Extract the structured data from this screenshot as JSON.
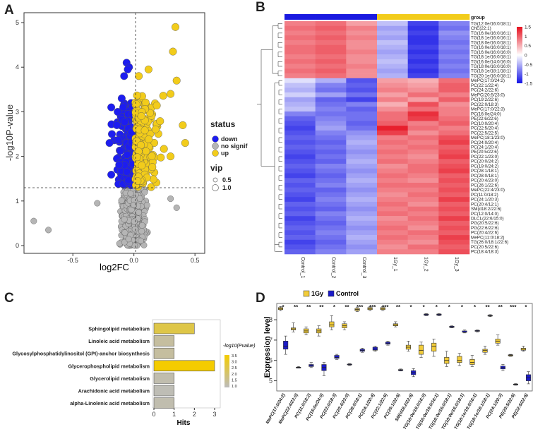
{
  "panels": [
    "A",
    "B",
    "C",
    "D"
  ],
  "colors": {
    "down": "#1d1df0",
    "nosig": "#b5b5b5",
    "up": "#f2cc1b",
    "hm_low": "#1414e6",
    "hm_mid": "#ffffff",
    "hm_high": "#e60f1e",
    "box_1gy": "#f2cc3a",
    "box_control": "#1b1bc8"
  },
  "volcano": {
    "xlabel": "log2FC",
    "ylabel": "-log10P-value",
    "xticks": [
      "-0.5",
      "0.0",
      "0.5"
    ],
    "yticks": [
      "0",
      "1",
      "2",
      "3",
      "4",
      "5"
    ],
    "legend": {
      "status_title": "status",
      "status_items": [
        "down",
        "no signif",
        "up"
      ],
      "vip_title": "vip",
      "vip_items": [
        "0.5",
        "1.0"
      ]
    }
  },
  "heatmap": {
    "group_label": "group",
    "scale_ticks": [
      "1.5",
      "1",
      "0.5",
      "0",
      "-0.5",
      "-1",
      "-1.5"
    ],
    "columns": [
      "Control_1",
      "Control_2",
      "Control_3",
      "1Gy_1",
      "1Gy_2",
      "1Gy_3"
    ],
    "rows": [
      "TG(12:0e/16:0/18:1)",
      "ChE(22:1)",
      "TG(16:0e/16:0/16:1)",
      "TG(18:1e/16:0/16:1)",
      "TG(18:0e/16:0/18:1)",
      "TG(16:0e/16:0/18:1)",
      "TG(16:0e/16:0/16:0)",
      "TG(18:1e/16:0/18:1)",
      "TG(16:0e/14:0/16:0)",
      "TG(18:0e/16:0/16:0)",
      "TG(18:1e/18:1/18:1)",
      "TG(20:1e/16:0/18:1)",
      "MePC(17:0/24:2)",
      "PC(22:1/22:4)",
      "PC(24:2/22:6)",
      "MePC(20:5/23:0)",
      "PC(19:2/22:6)",
      "PC(22:0/18:3)",
      "MePC(17:0/22:3)",
      "PC(16:0e/24:0)",
      "PE(22:6/22:6)",
      "PC(10:0/20:4)",
      "PC(22:5/20:4)",
      "PC(22:5/22:5)",
      "MePC(18:1/23:0)",
      "PC(24:0/20:4)",
      "PC(24:1/20:4)",
      "PE(20:5/22:6)",
      "PC(22:1/23:0)",
      "PC(20:0/24:2)",
      "PC(19:0/24:2)",
      "PC(28:1/18:1)",
      "PC(28:0/18:1)",
      "PC(20:4/23:0)",
      "PC(26:1/22:6)",
      "MePC(22:4/23:0)",
      "PC(11:0/18:2)",
      "PC(24:1/20:3)",
      "PC(20:4/12:1)",
      "SM(d18:2/22:6)",
      "PC(12:0/14:0)",
      "DLCL(22:6/15:0)",
      "PG(20:5/22:6)",
      "PG(22:6/22:6)",
      "PC(20:4/22:6)",
      "MePC(11:0/18:2)",
      "TG(26:0/18:1/22:6)",
      "PC(20:5/22:6)",
      "PC(18:4/18:3)"
    ],
    "values": [
      [
        0.8,
        0.9,
        0.6,
        -0.4,
        -1.2,
        -0.8
      ],
      [
        0.9,
        1.0,
        0.8,
        -0.6,
        -1.3,
        -0.9
      ],
      [
        0.8,
        0.9,
        0.7,
        -0.5,
        -1.2,
        -0.7
      ],
      [
        0.9,
        1.0,
        0.8,
        -0.6,
        -1.3,
        -0.8
      ],
      [
        0.8,
        0.9,
        0.7,
        -0.4,
        -1.3,
        -0.9
      ],
      [
        0.9,
        1.0,
        0.7,
        -0.5,
        -1.2,
        -0.8
      ],
      [
        0.9,
        1.0,
        0.8,
        -0.6,
        -1.3,
        -0.9
      ],
      [
        0.8,
        0.9,
        0.7,
        -0.5,
        -1.2,
        -0.8
      ],
      [
        0.9,
        1.0,
        0.7,
        -0.4,
        -1.3,
        -0.9
      ],
      [
        0.8,
        0.9,
        0.8,
        -0.5,
        -1.2,
        -0.8
      ],
      [
        0.9,
        1.0,
        0.7,
        -0.6,
        -1.3,
        -0.9
      ],
      [
        0.8,
        0.9,
        0.7,
        -0.5,
        -1.2,
        -0.8
      ],
      [
        -0.2,
        -0.5,
        -1.1,
        0.6,
        0.5,
        0.9
      ],
      [
        -0.4,
        -0.8,
        -1.0,
        0.7,
        0.6,
        1.0
      ],
      [
        -0.5,
        -0.9,
        -1.1,
        0.8,
        0.7,
        1.0
      ],
      [
        -0.3,
        -0.6,
        -0.9,
        0.6,
        0.9,
        0.8
      ],
      [
        -0.6,
        -1.0,
        -1.2,
        0.8,
        0.6,
        1.0
      ],
      [
        -0.5,
        -0.9,
        -0.8,
        0.5,
        1.1,
        0.7
      ],
      [
        -0.4,
        -0.8,
        -1.0,
        0.7,
        0.9,
        0.8
      ],
      [
        -0.8,
        -0.9,
        -0.9,
        0.9,
        1.3,
        0.8
      ],
      [
        -1.0,
        -0.8,
        -0.9,
        0.9,
        1.2,
        0.9
      ],
      [
        -1.1,
        -0.7,
        -1.0,
        1.0,
        0.8,
        1.0
      ],
      [
        -1.2,
        -0.6,
        -0.9,
        1.4,
        0.9,
        0.8
      ],
      [
        -1.1,
        -0.8,
        -0.7,
        1.2,
        0.7,
        0.9
      ],
      [
        -1.0,
        -0.9,
        -0.6,
        0.8,
        0.9,
        1.1
      ],
      [
        -1.1,
        -1.0,
        -0.5,
        0.9,
        0.8,
        1.2
      ],
      [
        -1.0,
        -0.9,
        -0.6,
        0.8,
        0.9,
        1.0
      ],
      [
        -1.1,
        -1.0,
        -0.7,
        0.9,
        0.8,
        1.1
      ],
      [
        -1.2,
        -0.9,
        -0.6,
        0.8,
        0.7,
        1.2
      ],
      [
        -1.1,
        -1.0,
        -0.5,
        0.9,
        0.8,
        1.0
      ],
      [
        -1.0,
        -0.8,
        -0.6,
        0.7,
        0.9,
        1.1
      ],
      [
        -1.1,
        -0.9,
        -0.7,
        0.8,
        0.9,
        1.2
      ],
      [
        -1.2,
        -1.0,
        -0.6,
        0.9,
        0.8,
        1.0
      ],
      [
        -1.0,
        -0.9,
        -0.5,
        0.8,
        0.7,
        1.1
      ],
      [
        -1.1,
        -0.8,
        -0.6,
        0.9,
        0.9,
        1.0
      ],
      [
        -1.0,
        -1.0,
        -0.7,
        0.8,
        0.8,
        1.1
      ],
      [
        -1.1,
        -0.9,
        -0.6,
        0.7,
        0.9,
        1.0
      ],
      [
        -1.2,
        -0.8,
        -0.5,
        0.8,
        0.8,
        1.2
      ],
      [
        -1.0,
        -0.9,
        -0.6,
        0.9,
        0.7,
        1.0
      ],
      [
        -1.1,
        -1.0,
        -0.7,
        0.8,
        0.9,
        1.1
      ],
      [
        -1.0,
        -0.8,
        -0.6,
        0.9,
        0.8,
        1.0
      ],
      [
        -1.2,
        -0.9,
        -0.5,
        0.7,
        0.9,
        1.2
      ],
      [
        -1.1,
        -1.0,
        -0.6,
        0.8,
        0.8,
        1.0
      ],
      [
        -1.0,
        -0.9,
        -0.7,
        0.9,
        0.7,
        1.1
      ],
      [
        -1.1,
        -0.8,
        -0.6,
        0.8,
        0.9,
        1.0
      ],
      [
        -1.0,
        -0.9,
        -0.5,
        0.9,
        0.8,
        1.2
      ],
      [
        -1.2,
        -1.0,
        -0.6,
        0.8,
        0.7,
        1.1
      ],
      [
        -1.1,
        -0.9,
        -0.7,
        0.7,
        0.9,
        1.0
      ],
      [
        -1.0,
        -0.8,
        -0.6,
        0.8,
        0.8,
        1.1
      ]
    ]
  },
  "chart_data": [
    {
      "type": "bar",
      "panel": "C",
      "categories": [
        "Sphingolipid metabolism",
        "Linoleic acid metabolism",
        "Glycosylphosphatidylinositol (GPI)-anchor biosynthesis",
        "Glycerophospholipid metabolism",
        "Glycerolipid metabolism",
        "Arachidonic acid metabolism",
        "alpha-Linolenic acid metabolism"
      ],
      "values": [
        2,
        1,
        1,
        3,
        1,
        1,
        1
      ],
      "color_values": [
        2.6,
        1.4,
        1.4,
        3.6,
        1.2,
        1.1,
        1.2
      ],
      "xlabel": "Hits",
      "xticks": [
        "0",
        "1",
        "2",
        "3"
      ],
      "xlim": [
        0,
        3
      ],
      "legend_title": "-log10(Pvalue)",
      "legend_ticks": [
        "3.5",
        "3.0",
        "2.5",
        "2.0",
        "1.5",
        "1.0"
      ]
    },
    {
      "type": "box",
      "panel": "D",
      "ylabel": "Expression level",
      "yticks": [
        "5",
        "6",
        "7",
        "8"
      ],
      "ylim": [
        4.5,
        8.8
      ],
      "legend": [
        "1Gy",
        "Control"
      ],
      "categories": [
        "MePC(17:0/24:2)",
        "MePC(22:4/23:0)",
        "PC(11:0/18:2)",
        "PC(16:0e/24:0)",
        "PC(22:0/18:3)",
        "PC(20:4/23:0)",
        "PC(28:0/18:1)",
        "PC(24:1/20:4)",
        "PC(22:1/22:6)",
        "PC(26:1/22:6)",
        "SM(d18:2/22:6)",
        "TG(16:0e/16:0/16:0)",
        "TG(16:0e/16:0/16:1)",
        "TG(16:0e/16:0/18:1)",
        "TG(18:0e/16:0/18:1)",
        "TG(18:1e/16:0/16:1)",
        "TG(18:1e/18:1/18:1)",
        "PC(24:1/20:3)",
        "PE(20:5/22:6)",
        "PE(22:6/22:6)"
      ],
      "significance": [
        "*",
        "**",
        "**",
        "**",
        "*",
        "**",
        "***",
        "***",
        "***",
        "**",
        "*",
        "*",
        "*",
        "*",
        "*",
        "*",
        "**",
        "**",
        "***",
        "*"
      ],
      "series": [
        {
          "name": "1Gy",
          "stats": [
            [
              8.45,
              8.5,
              8.55,
              8.6,
              8.65
            ],
            [
              7.4,
              7.5,
              7.55,
              7.6,
              7.85
            ],
            [
              7.25,
              7.35,
              7.45,
              7.55,
              7.65
            ],
            [
              7.2,
              7.35,
              7.45,
              7.55,
              7.7
            ],
            [
              7.5,
              7.65,
              7.75,
              7.9,
              8.2
            ],
            [
              7.5,
              7.6,
              7.7,
              7.8,
              7.9
            ],
            [
              8.4,
              8.45,
              8.5,
              8.55,
              8.6
            ],
            [
              8.45,
              8.5,
              8.55,
              8.6,
              8.65
            ],
            [
              8.45,
              8.5,
              8.55,
              8.6,
              8.65
            ],
            [
              7.65,
              7.7,
              7.75,
              7.8,
              7.9
            ],
            [
              6.45,
              6.55,
              6.65,
              6.75,
              6.95
            ],
            [
              6.15,
              6.3,
              6.5,
              6.75,
              6.9
            ],
            [
              6.2,
              6.45,
              6.7,
              6.85,
              7.05
            ],
            [
              5.7,
              5.85,
              6.0,
              6.15,
              6.45
            ],
            [
              5.75,
              5.9,
              6.0,
              6.2,
              6.35
            ],
            [
              5.7,
              5.8,
              5.9,
              6.05,
              6.25
            ],
            [
              6.3,
              6.4,
              6.5,
              6.55,
              6.7
            ],
            [
              6.75,
              6.85,
              6.95,
              7.05,
              7.25
            ],
            [
              6.2,
              6.22,
              6.25,
              6.28,
              6.3
            ],
            [
              6.45,
              6.5,
              6.55,
              6.6,
              6.7
            ]
          ]
        },
        {
          "name": "Control",
          "stats": [
            [
              6.3,
              6.55,
              6.7,
              6.95,
              7.2
            ],
            [
              5.62,
              5.64,
              5.65,
              5.67,
              5.7
            ],
            [
              5.65,
              5.7,
              5.75,
              5.8,
              5.9
            ],
            [
              5.25,
              5.5,
              5.65,
              5.8,
              5.9
            ],
            [
              6.05,
              6.1,
              6.15,
              6.25,
              6.3
            ],
            [
              5.75,
              5.78,
              5.8,
              5.82,
              5.85
            ],
            [
              6.4,
              6.45,
              6.5,
              6.55,
              6.6
            ],
            [
              6.45,
              6.5,
              6.55,
              6.65,
              6.7
            ],
            [
              6.75,
              6.8,
              6.85,
              6.9,
              6.95
            ],
            [
              5.48,
              5.5,
              5.52,
              5.55,
              5.58
            ],
            [
              5.2,
              5.3,
              5.4,
              5.5,
              5.6
            ],
            [
              8.2,
              8.22,
              8.25,
              8.28,
              8.3
            ],
            [
              8.2,
              8.22,
              8.25,
              8.28,
              8.3
            ],
            [
              7.6,
              7.62,
              7.65,
              7.68,
              7.7
            ],
            [
              7.35,
              7.38,
              7.4,
              7.45,
              7.5
            ],
            [
              7.4,
              7.43,
              7.45,
              7.48,
              7.5
            ],
            [
              8.15,
              8.18,
              8.2,
              8.22,
              8.25
            ],
            [
              5.5,
              5.58,
              5.65,
              5.72,
              5.8
            ],
            [
              4.78,
              4.8,
              4.82,
              4.84,
              4.86
            ],
            [
              4.85,
              5.0,
              5.15,
              5.3,
              5.45
            ]
          ]
        }
      ]
    }
  ]
}
